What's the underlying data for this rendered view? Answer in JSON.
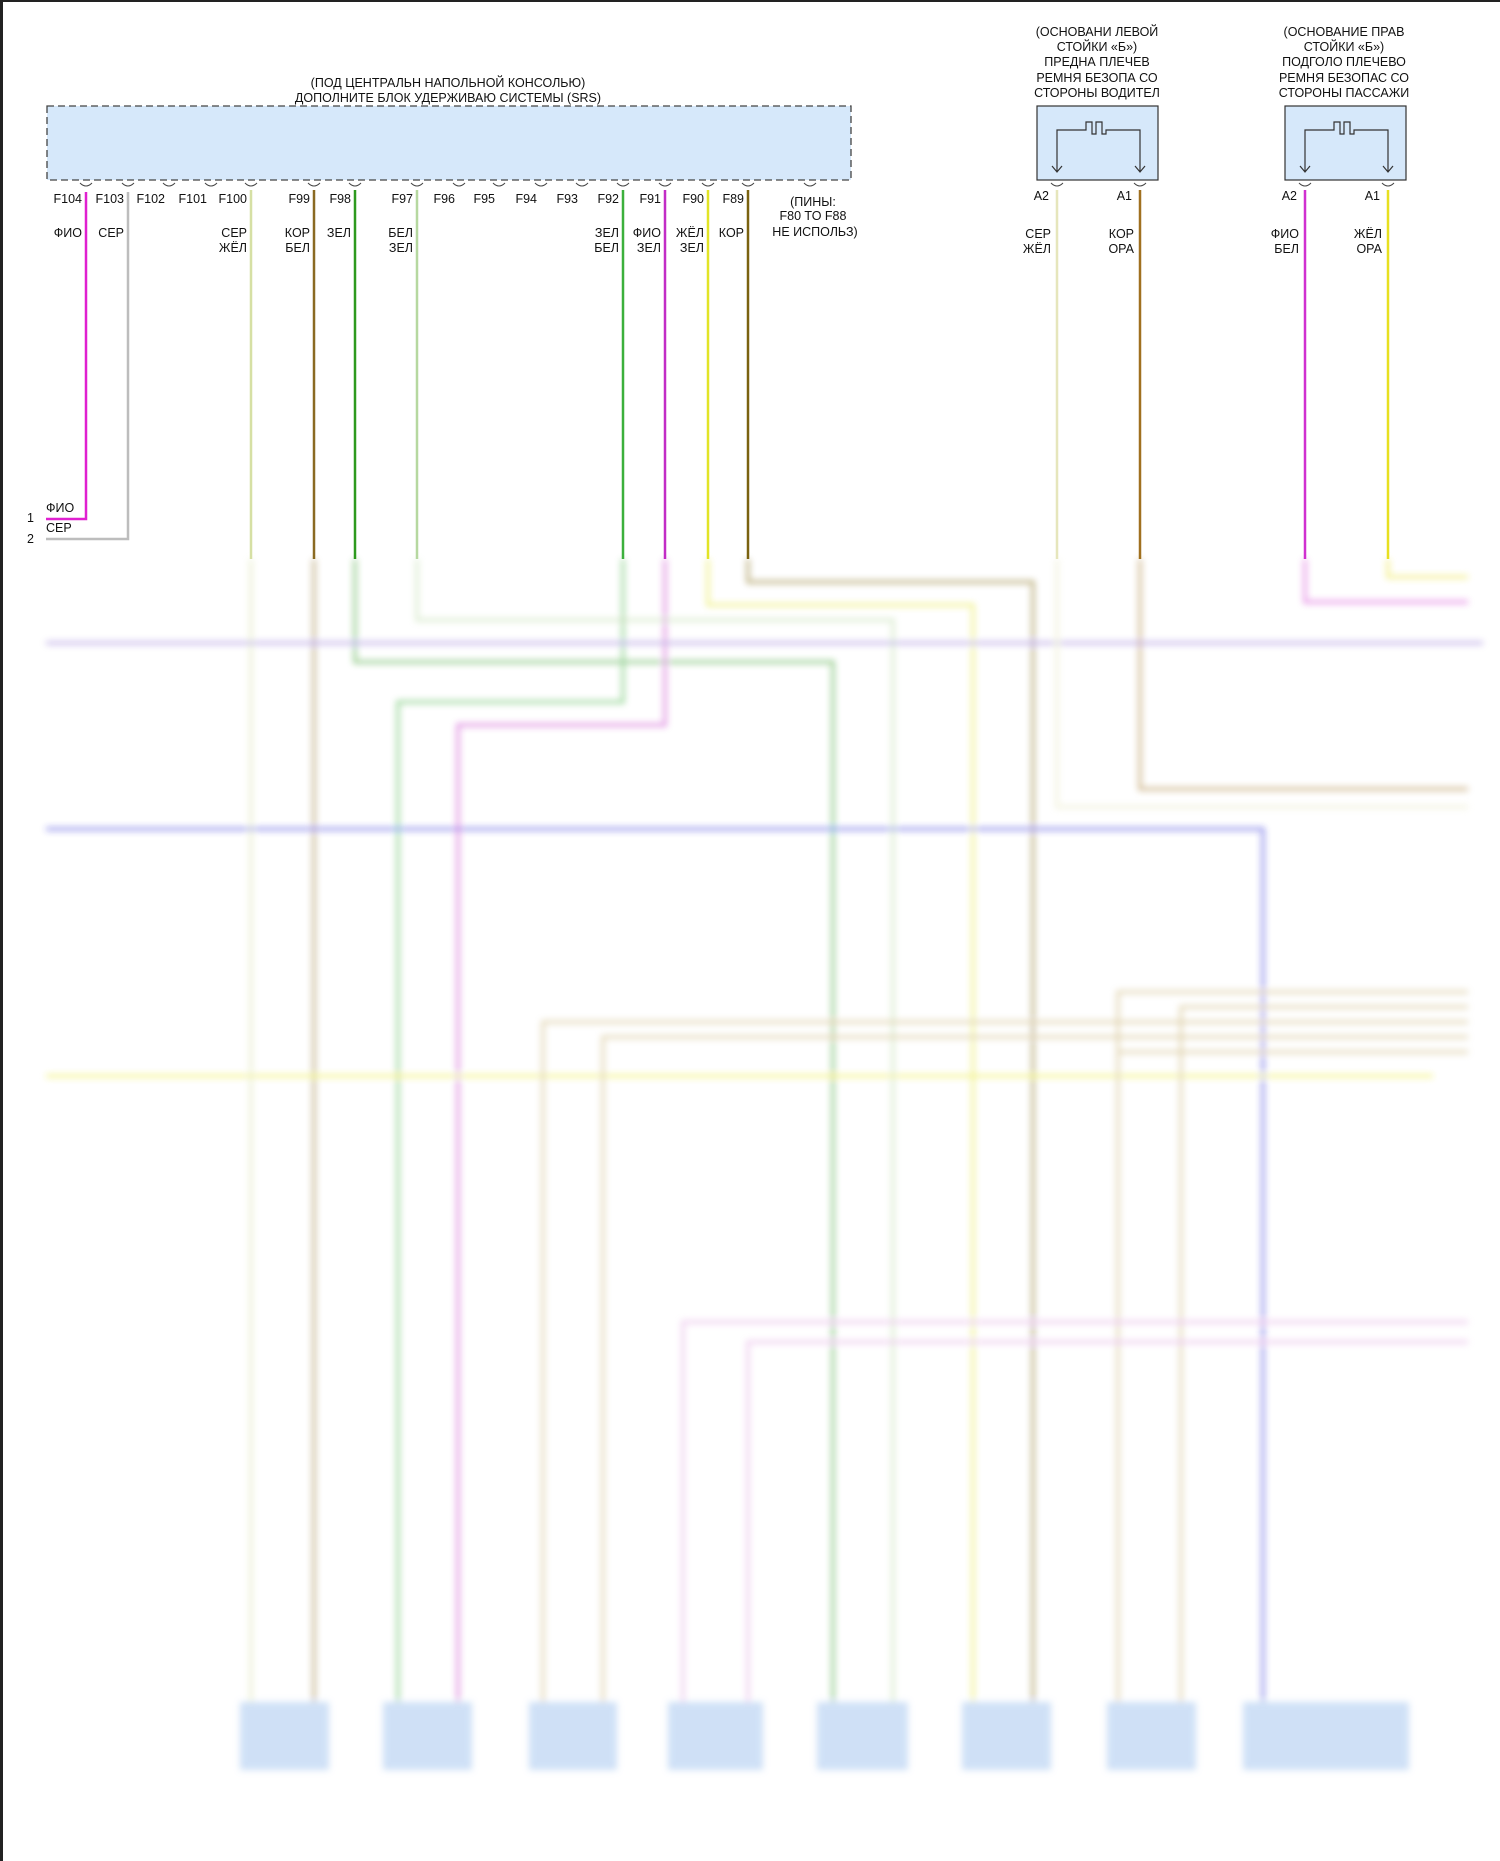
{
  "srs_module": {
    "title_lines": [
      "(ПОД ЦЕНТРАЛЬН НАПОЛЬНОЙ КОНСОЛЬЮ)",
      "ДОПОЛНИТЕ БЛОК УДЕРЖИВАЮ СИСТЕМЫ (SRS)"
    ],
    "pins": [
      {
        "id": "F104",
        "colors": [
          "ФИО"
        ],
        "wire": "#e020d0"
      },
      {
        "id": "F103",
        "colors": [
          "СЕР"
        ],
        "wire": "#bdbdbd"
      },
      {
        "id": "F102",
        "colors": []
      },
      {
        "id": "F101",
        "colors": []
      },
      {
        "id": "F100",
        "colors": [
          "СЕР",
          "ЖЁЛ"
        ],
        "wire": "#d6e0a4"
      },
      {
        "id": "F99",
        "colors": [
          "КОР",
          "БЕЛ"
        ],
        "wire": "#8a6a22"
      },
      {
        "id": "F98",
        "colors": [
          "ЗЕЛ"
        ],
        "wire": "#2e9a1e"
      },
      {
        "id": "F97",
        "colors": [
          "БЕЛ",
          "ЗЕЛ"
        ],
        "wire": "#b6d8a0"
      },
      {
        "id": "F96",
        "colors": []
      },
      {
        "id": "F95",
        "colors": []
      },
      {
        "id": "F94",
        "colors": []
      },
      {
        "id": "F93",
        "colors": []
      },
      {
        "id": "F92",
        "colors": [
          "ЗЕЛ",
          "БЕЛ"
        ],
        "wire": "#3cb03c"
      },
      {
        "id": "F91",
        "colors": [
          "ФИО",
          "ЗЕЛ"
        ],
        "wire": "#c22cc6"
      },
      {
        "id": "F90",
        "colors": [
          "ЖЁЛ",
          "ЗЕЛ"
        ],
        "wire": "#e2e426"
      },
      {
        "id": "F89",
        "colors": [
          "КОР"
        ],
        "wire": "#7a6210"
      }
    ],
    "unused_note": [
      "(ПИНЫ:",
      "F80 TO F88",
      "НЕ ИСПОЛЬЗ)"
    ]
  },
  "left_connector": [
    {
      "num": "1",
      "color": "ФИО"
    },
    {
      "num": "2",
      "color": "СЕР"
    }
  ],
  "driver_pretensioner": {
    "title_lines": [
      "(ОСНОВАНИ ЛЕВОЙ",
      "СТОЙКИ «Б»)",
      "ПРЕДНА ПЛЕЧЕВ",
      "РЕМНЯ БЕЗОПА СО",
      "СТОРОНЫ ВОДИТЕЛ"
    ],
    "pins": [
      {
        "id": "A2",
        "colors": [
          "СЕР",
          "ЖЁЛ"
        ],
        "wire": "#e6e6bc"
      },
      {
        "id": "A1",
        "colors": [
          "КОР",
          "ОРА"
        ],
        "wire": "#a07020"
      }
    ]
  },
  "passenger_pretensioner": {
    "title_lines": [
      "(ОСНОВАНИЕ ПРАВ",
      "СТОЙКИ «Б»)",
      "ПОДГОЛО ПЛЕЧЕВО",
      "РЕМНЯ БЕЗОПАС СО",
      "СТОРОНЫ ПАССАЖИ"
    ],
    "pins": [
      {
        "id": "A2",
        "colors": [
          "ФИО",
          "БЕЛ"
        ],
        "wire": "#d030d0"
      },
      {
        "id": "A1",
        "colors": [
          "ЖЁЛ",
          "ОРА"
        ],
        "wire": "#e8e020"
      }
    ]
  },
  "colors": {
    "component_fill": "#d6e8fa",
    "blurred_region": true
  }
}
